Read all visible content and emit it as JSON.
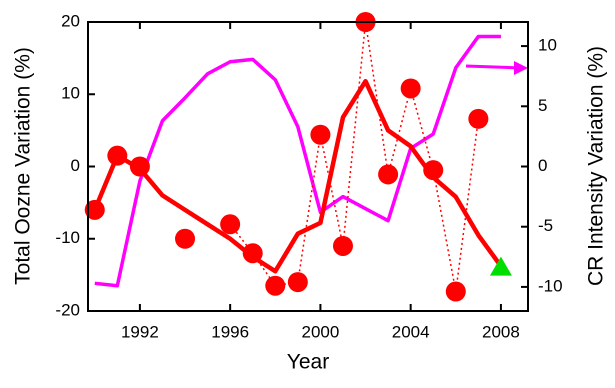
{
  "chart_data": {
    "type": "line",
    "xlabel": "Year",
    "ylabel": "Total Oozne Variation (%)",
    "y2label": "CR Intensity Variation (%)",
    "x": [
      1990,
      1991,
      1992,
      1993,
      1994,
      1995,
      1996,
      1997,
      1998,
      1999,
      2000,
      2001,
      2002,
      2003,
      2004,
      2005,
      2006,
      2007,
      2008
    ],
    "xlim": [
      1989.7,
      2009.2
    ],
    "xticks": [
      1992,
      1996,
      2000,
      2004,
      2008
    ],
    "ylim": [
      -20,
      20
    ],
    "yticks": [
      -20,
      -10,
      0,
      10,
      20
    ],
    "y2lim": [
      -12,
      12
    ],
    "y2ticks": [
      -10,
      -5,
      0,
      5,
      10
    ],
    "series": [
      {
        "color": "#ff0000",
        "style": "dots",
        "values": [
          -6,
          1.5,
          0,
          null,
          -10,
          null,
          -8,
          -12,
          -16.5,
          -16,
          4.4,
          -11,
          20,
          -1.1,
          10.8,
          -0.5,
          -17.3,
          6.6,
          null
        ]
      },
      {
        "color": "#ff0000",
        "style": "line",
        "values": [
          -6,
          1.5,
          -0.3,
          -4,
          -6,
          -8,
          -10,
          -12.5,
          -14.5,
          -9.3,
          -7.8,
          6.8,
          11.8,
          5,
          2.8,
          -1.5,
          -4.2,
          -9.5,
          -13.8
        ]
      },
      {
        "color": "#ff00ff",
        "style": "line",
        "axis": "y2",
        "values": [
          -9.7,
          -9.9,
          -1.2,
          3.8,
          5.7,
          7.7,
          8.7,
          8.9,
          7.2,
          3.3,
          -3.8,
          -2.5,
          -3.5,
          -4.5,
          1.5,
          2.7,
          8.2,
          10.8,
          10.8
        ]
      },
      {
        "color": "#00dd00",
        "style": "triangle",
        "values": [
          null,
          null,
          null,
          null,
          null,
          null,
          null,
          null,
          null,
          null,
          null,
          null,
          null,
          null,
          null,
          null,
          null,
          null,
          -14
        ]
      }
    ]
  }
}
